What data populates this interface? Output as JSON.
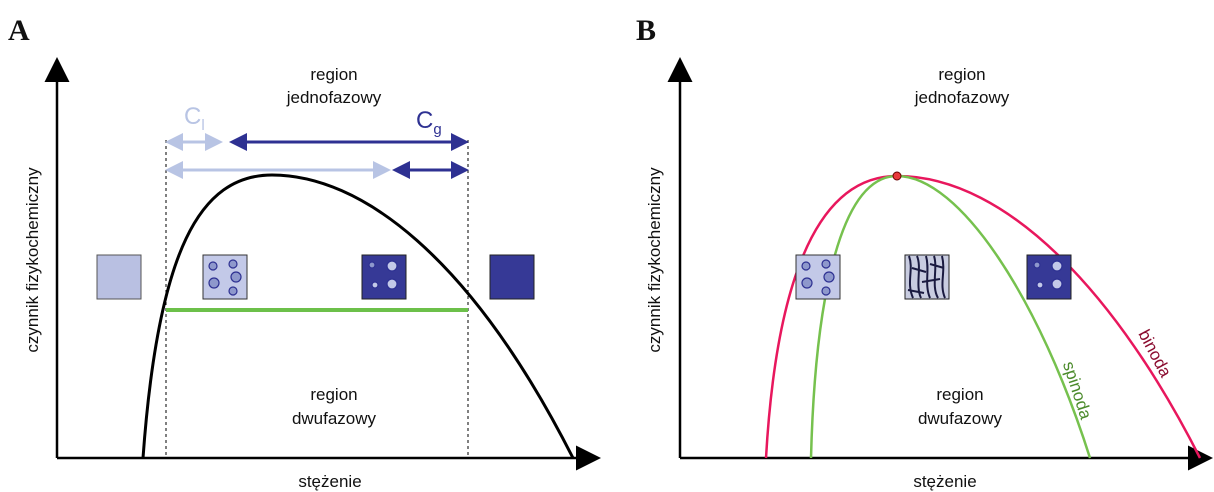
{
  "panels": [
    {
      "letter": "A",
      "y_axis": "czynnik fizykochemiczny",
      "x_axis": "stężenie",
      "upper_region": [
        "region",
        "jednofazowy"
      ],
      "lower_region": [
        "region",
        "dwufazowy"
      ],
      "cl": {
        "base": "C",
        "sub": "l"
      },
      "cg": {
        "base": "C",
        "sub": "g"
      }
    },
    {
      "letter": "B",
      "y_axis": "czynnik fizykochemiczny",
      "x_axis": "stężenie",
      "upper_region": [
        "region",
        "jednofazowy"
      ],
      "lower_region": [
        "region",
        "dwufazowy"
      ],
      "spinodal": "spinoda",
      "binodal": "binoda"
    }
  ]
}
